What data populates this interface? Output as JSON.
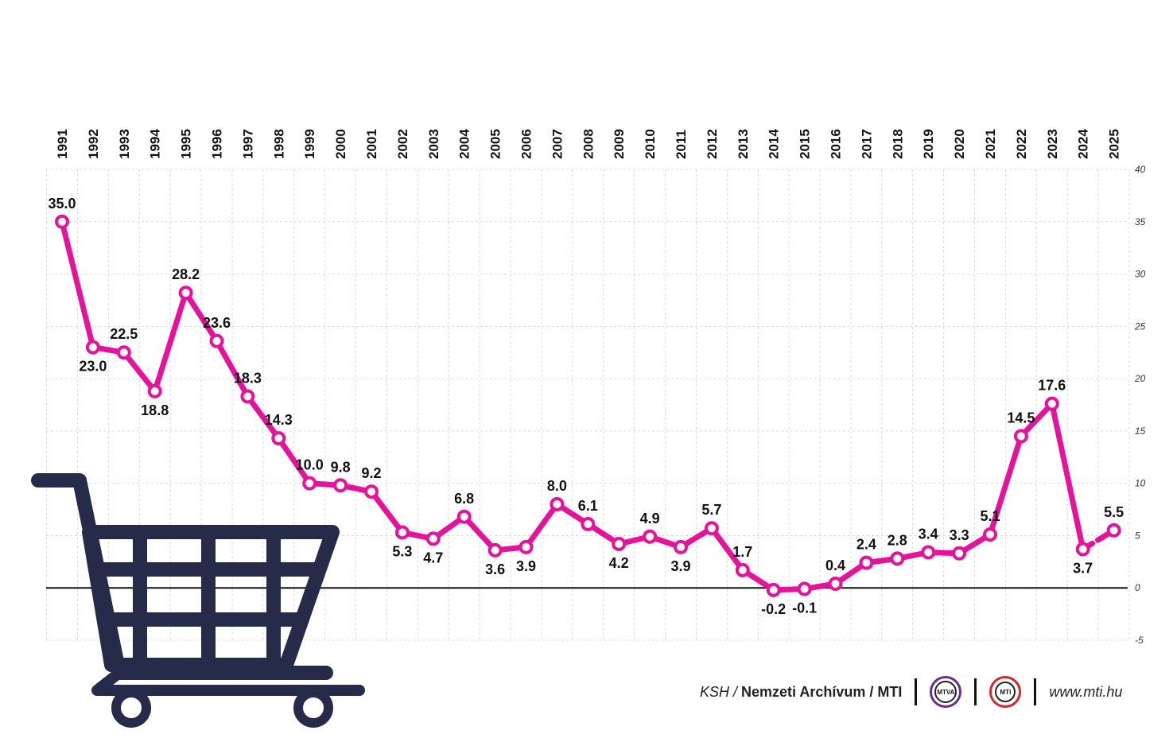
{
  "chart_data": {
    "type": "line",
    "title": "",
    "xlabel": "",
    "ylabel": "",
    "categories": [
      "1991",
      "1992",
      "1993",
      "1994",
      "1995",
      "1996",
      "1997",
      "1998",
      "1999",
      "2000",
      "2001",
      "2002",
      "2003",
      "2004",
      "2005",
      "2006",
      "2007",
      "2008",
      "2009",
      "2010",
      "2011",
      "2012",
      "2013",
      "2014",
      "2015",
      "2016",
      "2017",
      "2018",
      "2019",
      "2020",
      "2021",
      "2022",
      "2023",
      "2024",
      "2025"
    ],
    "values": [
      35.0,
      23.0,
      22.5,
      18.8,
      28.2,
      23.6,
      18.3,
      14.3,
      10.0,
      9.8,
      9.2,
      5.3,
      4.7,
      6.8,
      3.6,
      3.9,
      8.0,
      6.1,
      4.2,
      4.9,
      3.9,
      5.7,
      1.7,
      -0.2,
      -0.1,
      0.4,
      2.4,
      2.8,
      3.4,
      3.3,
      5.1,
      14.5,
      17.6,
      3.7,
      5.5
    ],
    "value_labels": [
      "35.0",
      "23.0",
      "22.5",
      "18.8",
      "28.2",
      "23.6",
      "18.3",
      "14.3",
      "10.0",
      "9.8",
      "9.2",
      "5.3",
      "4.7",
      "6.8",
      "3.6",
      "3.9",
      "8.0",
      "6.1",
      "4.2",
      "4.9",
      "3.9",
      "5.7",
      "1.7",
      "-0.2",
      "-0.1",
      "0.4",
      "2.4",
      "2.8",
      "3.4",
      "3.3",
      "5.1",
      "14.5",
      "17.6",
      "3.7",
      "5.5"
    ],
    "label_position": [
      "above",
      "below",
      "above",
      "below",
      "above",
      "above",
      "above",
      "above",
      "above",
      "above",
      "above",
      "below",
      "below",
      "above",
      "below",
      "below",
      "above",
      "above",
      "below",
      "above",
      "below",
      "above",
      "above",
      "below",
      "below",
      "above",
      "above",
      "above",
      "above",
      "above",
      "above",
      "above",
      "above",
      "below",
      "above"
    ],
    "dashed_last_segment": true,
    "y_ticks": [
      40,
      35,
      30,
      25,
      20,
      15,
      10,
      5,
      0,
      -5
    ],
    "ylim": [
      -5,
      40
    ],
    "grid": true,
    "line_color": "#e5139b"
  },
  "cart_color": "#262b4a",
  "footer": {
    "source_italic": "KSH",
    "source_sep": " / ",
    "source_bold": "Nemzeti Archívum / MTI",
    "logo_mtva": "MTVA",
    "logo_mti": "MTI",
    "url": "www.mti.hu"
  }
}
